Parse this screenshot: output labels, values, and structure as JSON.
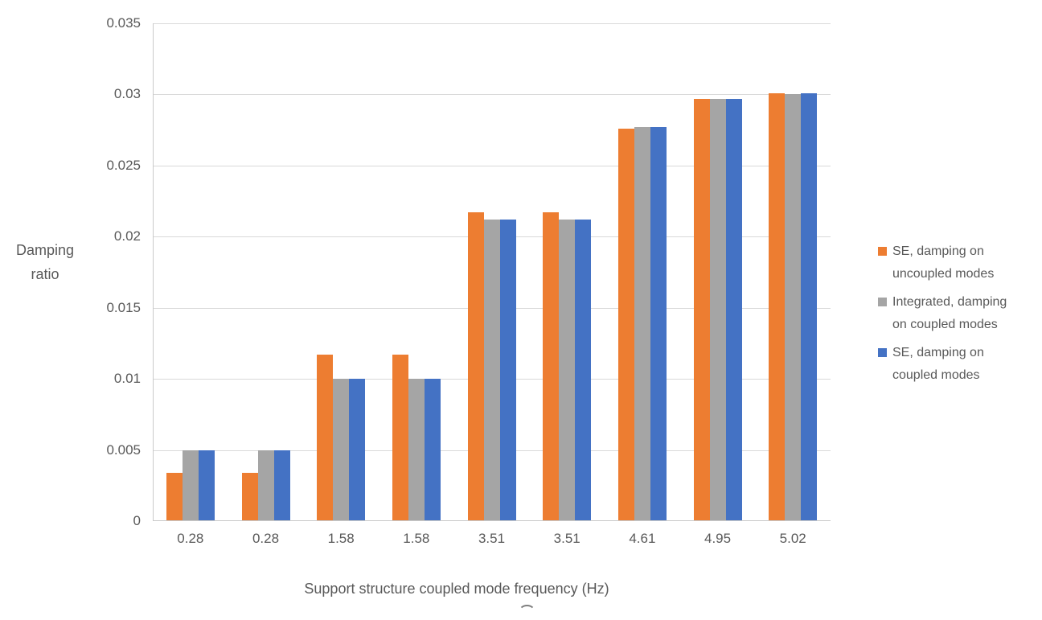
{
  "chart_data": {
    "type": "bar",
    "title": "",
    "xlabel": "Support structure coupled mode frequency (Hz)",
    "ylabel": "Damping ratio",
    "ylabel_lines": [
      "Damping",
      "ratio"
    ],
    "categories": [
      "0.28",
      "0.28",
      "1.58",
      "1.58",
      "3.51",
      "3.51",
      "4.61",
      "4.95",
      "5.02"
    ],
    "series": [
      {
        "name": "SE, damping on uncoupled modes",
        "label_lines": [
          "SE, damping on",
          "uncoupled modes"
        ],
        "color": "#ED7D31",
        "values": [
          0.0034,
          0.0034,
          0.0117,
          0.0117,
          0.0217,
          0.0217,
          0.0276,
          0.0297,
          0.0301
        ]
      },
      {
        "name": "Integrated, damping on coupled modes",
        "label_lines": [
          "Integrated, damping",
          "on coupled modes"
        ],
        "color": "#A5A5A5",
        "values": [
          0.005,
          0.005,
          0.01,
          0.01,
          0.0212,
          0.0212,
          0.0277,
          0.0297,
          0.03
        ]
      },
      {
        "name": "SE, damping on coupled modes",
        "label_lines": [
          "SE, damping on",
          "coupled modes"
        ],
        "color": "#4472C4",
        "values": [
          0.005,
          0.005,
          0.01,
          0.01,
          0.0212,
          0.0212,
          0.0277,
          0.0297,
          0.0301
        ]
      }
    ],
    "ylim": [
      0,
      0.035
    ],
    "yticks": [
      {
        "value": 0,
        "label": "0"
      },
      {
        "value": 0.005,
        "label": "0.005"
      },
      {
        "value": 0.01,
        "label": "0.01"
      },
      {
        "value": 0.015,
        "label": "0.015"
      },
      {
        "value": 0.02,
        "label": "0.02"
      },
      {
        "value": 0.025,
        "label": "0.025"
      },
      {
        "value": 0.03,
        "label": "0.03"
      },
      {
        "value": 0.035,
        "label": "0.035"
      }
    ],
    "grid": true,
    "legend_position": "right"
  },
  "colors": {
    "text": "#595959",
    "gridline": "#D9D9D9",
    "axis": "#C9C9C9",
    "background": "#FFFFFF"
  }
}
